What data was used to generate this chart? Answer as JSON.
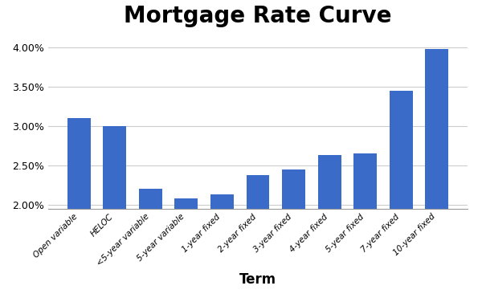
{
  "title": "Mortgage Rate Curve",
  "xlabel": "Term",
  "categories": [
    "Open variable",
    "HELOC",
    "<5-year variable",
    "5-year variable",
    "1-year fixed",
    "2-year fixed",
    "3-year fixed",
    "4-year fixed",
    "5-year fixed",
    "7-year fixed",
    "10-year fixed"
  ],
  "values": [
    0.031,
    0.03,
    0.022,
    0.0208,
    0.0213,
    0.0238,
    0.0245,
    0.0263,
    0.0265,
    0.0345,
    0.0398
  ],
  "bar_color": "#3A6BC9",
  "ylim_min": 0.0195,
  "ylim_max": 0.0415,
  "yticks": [
    0.02,
    0.025,
    0.03,
    0.035,
    0.04
  ],
  "title_fontsize": 20,
  "xlabel_fontsize": 12,
  "tick_fontsize": 9,
  "xtick_fontsize": 7.5,
  "background_color": "#ffffff"
}
